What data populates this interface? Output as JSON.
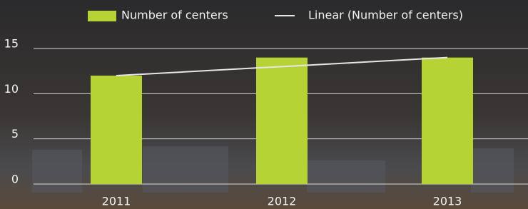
{
  "chart_data": {
    "type": "bar",
    "categories": [
      "2011",
      "2012",
      "2013"
    ],
    "series": [
      {
        "name": "Number of centers",
        "type": "bar",
        "color": "#b5d334",
        "values": [
          12,
          14,
          14
        ]
      },
      {
        "name": "Linear (Number of centers)",
        "type": "line",
        "color": "#e6e6e6",
        "values": [
          12,
          13,
          14
        ]
      }
    ],
    "ylim": [
      0,
      15
    ],
    "yticks": [
      0,
      5,
      10,
      15
    ],
    "grid": true,
    "legend": "top"
  }
}
